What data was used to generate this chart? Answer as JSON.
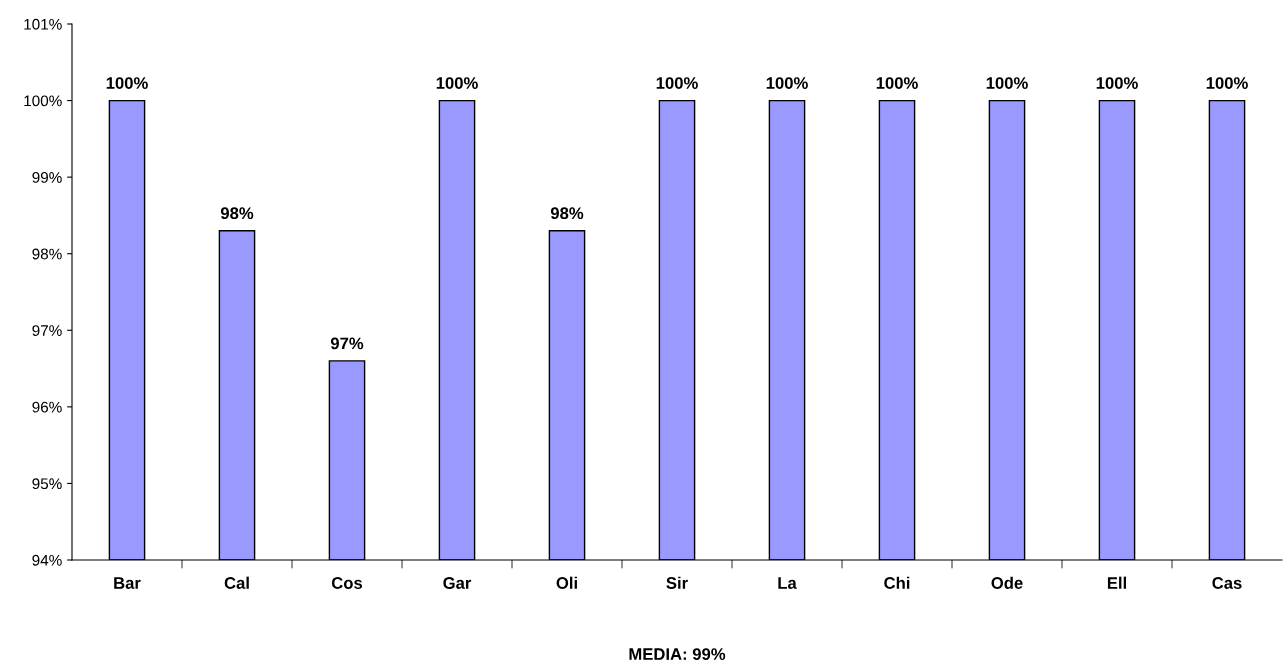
{
  "chart_data": {
    "type": "bar",
    "xlabel": "MEDIA: 99%",
    "categories": [
      "Bar",
      "Cal",
      "Cos",
      "Gar",
      "Oli",
      "Sir",
      "La",
      "Chi",
      "Ode",
      "Ell",
      "Cas"
    ],
    "values": [
      100,
      98.3,
      96.6,
      100,
      98.3,
      100,
      100,
      100,
      100,
      100,
      100
    ],
    "value_labels": [
      "100%",
      "98%",
      "97%",
      "100%",
      "98%",
      "100%",
      "100%",
      "100%",
      "100%",
      "100%",
      "100%"
    ],
    "color": "#9999ff",
    "ylim": [
      94,
      101
    ],
    "yticks": [
      {
        "value": 94,
        "label": "94%"
      },
      {
        "value": 95,
        "label": "95%"
      },
      {
        "value": 96,
        "label": "96%"
      },
      {
        "value": 97,
        "label": "97%"
      },
      {
        "value": 98,
        "label": "98%"
      },
      {
        "value": 99,
        "label": "99%"
      },
      {
        "value": 100,
        "label": "100%"
      },
      {
        "value": 101,
        "label": "101%"
      }
    ],
    "grid": false,
    "legend": false
  }
}
